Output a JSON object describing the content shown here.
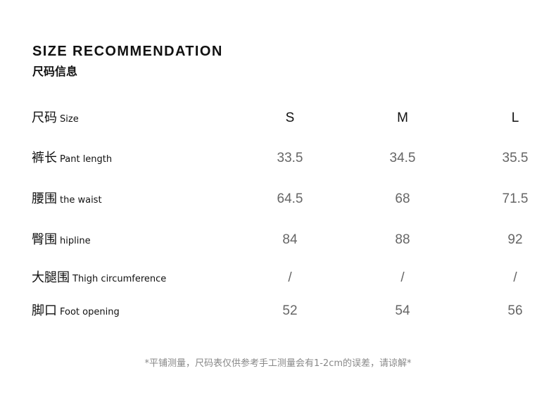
{
  "title": "SIZE RECOMMENDATION",
  "subtitle": "尺码信息",
  "header": {
    "cn": "尺码",
    "en": "Size",
    "sizes": [
      "S",
      "M",
      "L"
    ]
  },
  "rows": [
    {
      "cn": "裤长",
      "en": "Pant length",
      "values": [
        "33.5",
        "34.5",
        "35.5"
      ]
    },
    {
      "cn": "腰围",
      "en": "the waist",
      "values": [
        "64.5",
        "68",
        "71.5"
      ]
    },
    {
      "cn": "臀围",
      "en": "hipline",
      "values": [
        "84",
        "88",
        "92"
      ]
    },
    {
      "cn": "大腿围",
      "en": "Thigh circumference",
      "values": [
        "/",
        "/",
        "/"
      ]
    },
    {
      "cn": "脚口",
      "en": "Foot opening",
      "values": [
        "52",
        "54",
        "56"
      ]
    }
  ],
  "note": "*平铺测量，尺码表仅供参考手工测量会有1-2cm的误差，请谅解*"
}
